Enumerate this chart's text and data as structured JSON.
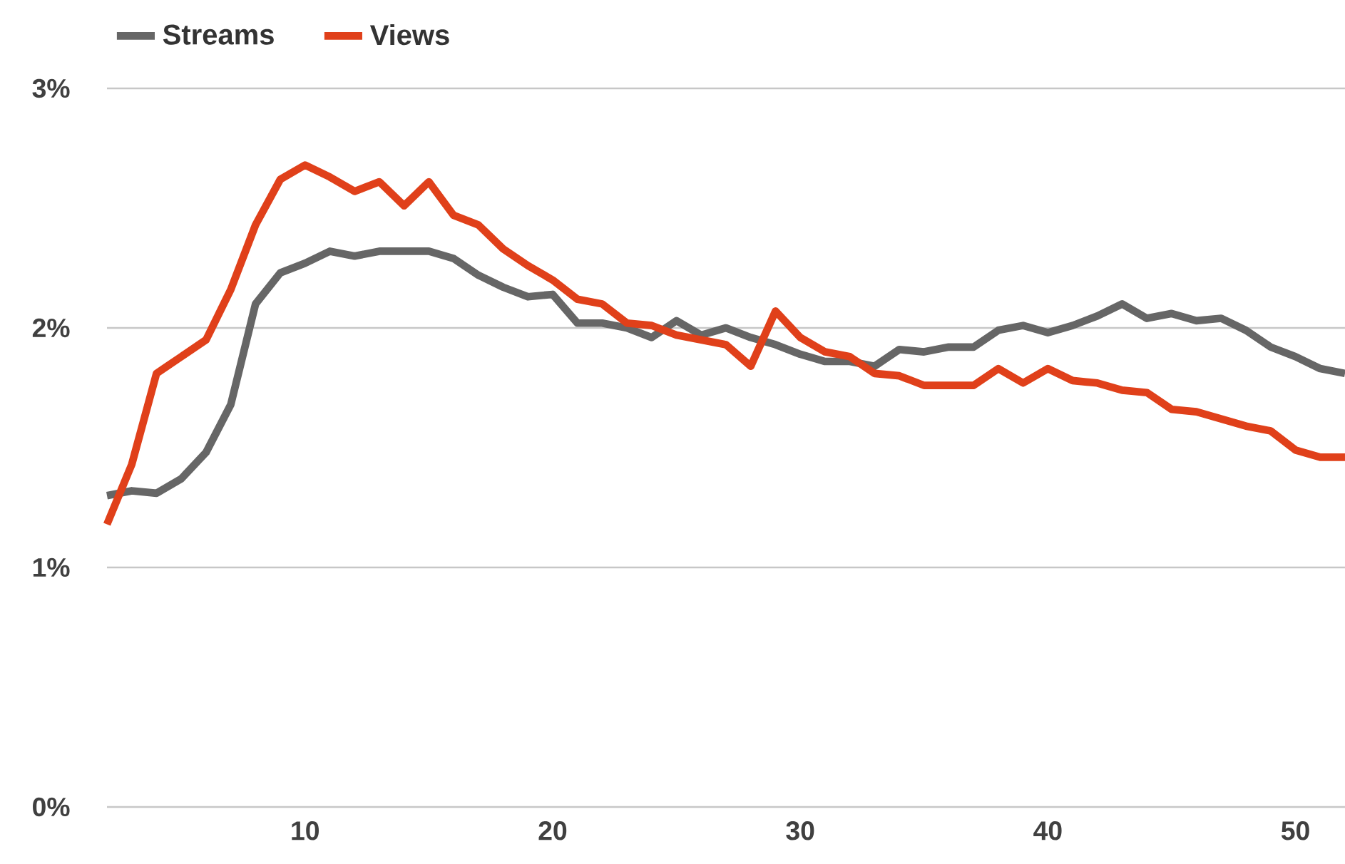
{
  "chart_data": {
    "type": "line",
    "x": [
      2,
      3,
      4,
      5,
      6,
      7,
      8,
      9,
      10,
      11,
      12,
      13,
      14,
      15,
      16,
      17,
      18,
      19,
      20,
      21,
      22,
      23,
      24,
      25,
      26,
      27,
      28,
      29,
      30,
      31,
      32,
      33,
      34,
      35,
      36,
      37,
      38,
      39,
      40,
      41,
      42,
      43,
      44,
      45,
      46,
      47,
      48,
      49,
      50,
      51,
      52
    ],
    "series": [
      {
        "name": "Streams",
        "color": "#666666",
        "values": [
          1.3,
          1.32,
          1.31,
          1.37,
          1.48,
          1.68,
          2.1,
          2.23,
          2.27,
          2.32,
          2.3,
          2.32,
          2.32,
          2.32,
          2.29,
          2.22,
          2.17,
          2.13,
          2.14,
          2.02,
          2.02,
          2.0,
          1.96,
          2.03,
          1.97,
          2.0,
          1.96,
          1.93,
          1.89,
          1.86,
          1.86,
          1.84,
          1.91,
          1.9,
          1.92,
          1.92,
          1.99,
          2.01,
          1.98,
          2.01,
          2.05,
          2.1,
          2.04,
          2.06,
          2.03,
          2.04,
          1.99,
          1.92,
          1.88,
          1.83,
          1.81
        ]
      },
      {
        "name": "Views",
        "color": "#e0401a",
        "values": [
          1.18,
          1.43,
          1.81,
          1.88,
          1.95,
          2.16,
          2.43,
          2.62,
          2.68,
          2.63,
          2.57,
          2.61,
          2.51,
          2.61,
          2.47,
          2.43,
          2.33,
          2.26,
          2.2,
          2.12,
          2.1,
          2.02,
          2.01,
          1.97,
          1.95,
          1.93,
          1.84,
          2.07,
          1.96,
          1.9,
          1.88,
          1.81,
          1.8,
          1.76,
          1.76,
          1.76,
          1.83,
          1.77,
          1.83,
          1.78,
          1.77,
          1.74,
          1.73,
          1.66,
          1.65,
          1.62,
          1.59,
          1.57,
          1.49,
          1.46,
          1.46
        ]
      }
    ],
    "xlim": [
      2,
      52
    ],
    "ylim": [
      0,
      3
    ],
    "xticks": [
      10,
      20,
      30,
      40,
      50
    ],
    "yticks": [
      {
        "value": 0,
        "label": "0%"
      },
      {
        "value": 1,
        "label": "1%"
      },
      {
        "value": 2,
        "label": "2%"
      },
      {
        "value": 3,
        "label": "3%"
      }
    ],
    "grid": "y",
    "legend": "top left",
    "marker": "none",
    "line_style": "solid"
  }
}
